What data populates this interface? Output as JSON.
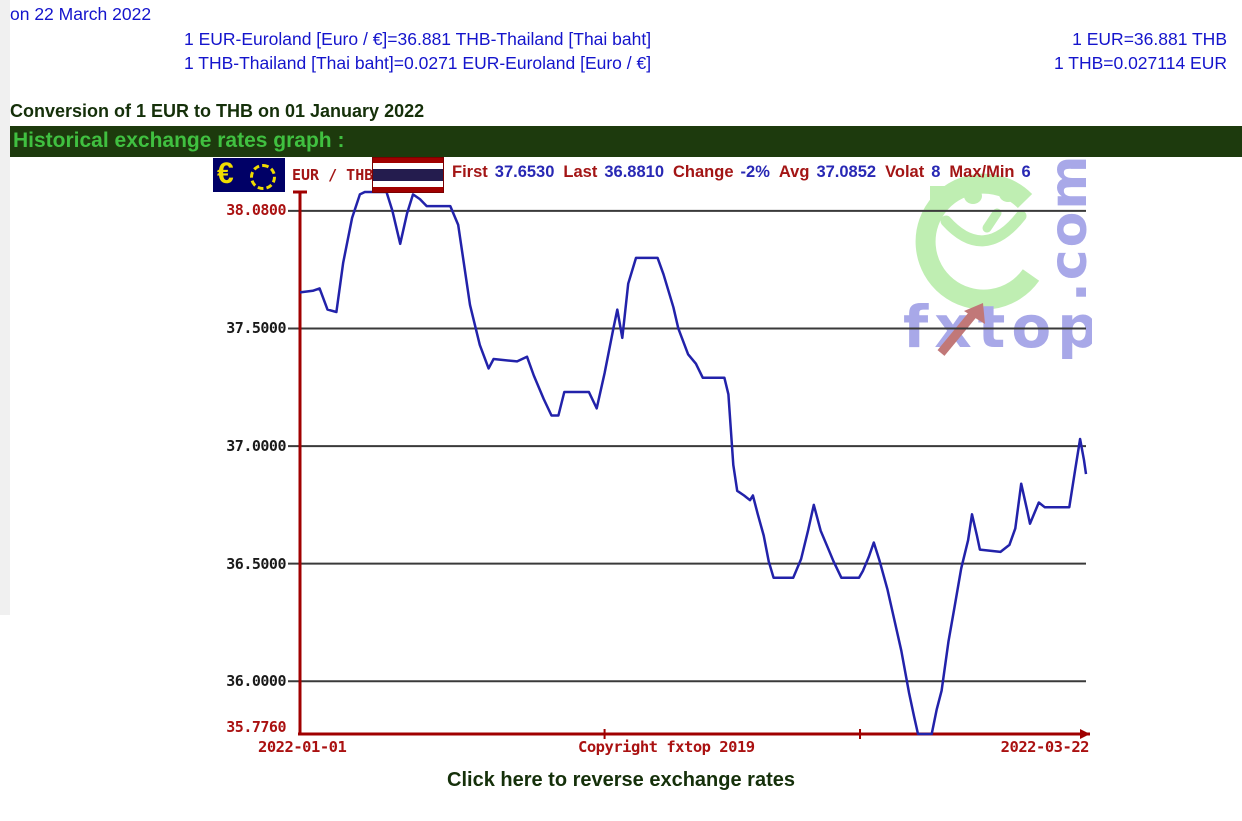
{
  "header": {
    "date_line": "on 22 March 2022",
    "rate_full_eur_to_thb": "1 EUR-Euroland [Euro / €]=36.881 THB-Thailand [Thai baht]",
    "rate_full_thb_to_eur": "1 THB-Thailand [Thai baht]=0.0271 EUR-Euroland [Euro / €]",
    "rate_short_eur_to_thb": "1 EUR=36.881 THB",
    "rate_short_thb_to_eur": "1 THB=0.027114 EUR"
  },
  "conversion_heading": "Conversion of 1 EUR to THB on 01 January 2022",
  "section": {
    "title": "Historical exchange rates graph :"
  },
  "chart_header": {
    "eur_flag_symbol": "€",
    "pair_label": "EUR / THB",
    "stats": [
      {
        "label": "First",
        "value": "37.6530"
      },
      {
        "label": "Last",
        "value": "36.8810"
      },
      {
        "label": "Change",
        "value": "-2%"
      },
      {
        "label": "Avg",
        "value": "37.0852"
      },
      {
        "label": "Volat",
        "value": "8"
      },
      {
        "label": "Max/Min",
        "value": "6"
      }
    ]
  },
  "chart_data": {
    "type": "line",
    "title": "EUR / THB historical exchange rate",
    "x_start_label": "2022-01-01",
    "x_end_label": "2022-03-22",
    "copyright": "Copyright fxtop 2019",
    "days_span": 80,
    "ylim": [
      35.776,
      38.08
    ],
    "first": 37.653,
    "last": 36.881,
    "change_pct": -2,
    "avg": 37.0852,
    "max": 38.08,
    "min": 35.776,
    "gridline_values": [
      38.0,
      37.5,
      37.0,
      36.5,
      36.0
    ],
    "x_tick_days": [
      31,
      57
    ],
    "y_axis_labels": [
      {
        "label": "38.0800",
        "value": 38.08,
        "emphasis": true
      },
      {
        "label": "37.5000",
        "value": 37.5,
        "emphasis": false
      },
      {
        "label": "37.0000",
        "value": 37.0,
        "emphasis": false
      },
      {
        "label": "36.5000",
        "value": 36.5,
        "emphasis": false
      },
      {
        "label": "36.0000",
        "value": 36.0,
        "emphasis": false
      },
      {
        "label": "35.7760",
        "value": 35.776,
        "emphasis": true
      }
    ],
    "points": [
      [
        0,
        37.653
      ],
      [
        1.3,
        37.66
      ],
      [
        2,
        37.67
      ],
      [
        2.8,
        37.58
      ],
      [
        3.7,
        37.57
      ],
      [
        4.4,
        37.78
      ],
      [
        5.3,
        37.97
      ],
      [
        6.1,
        38.07
      ],
      [
        6.6,
        38.08
      ],
      [
        8.8,
        38.08
      ],
      [
        9.4,
        38.0
      ],
      [
        10.2,
        37.86
      ],
      [
        10.9,
        37.99
      ],
      [
        11.5,
        38.07
      ],
      [
        12.2,
        38.05
      ],
      [
        12.9,
        38.02
      ],
      [
        15.3,
        38.02
      ],
      [
        16.1,
        37.94
      ],
      [
        17.3,
        37.6
      ],
      [
        18.3,
        37.43
      ],
      [
        19.2,
        37.33
      ],
      [
        19.7,
        37.37
      ],
      [
        22.1,
        37.36
      ],
      [
        23.1,
        37.38
      ],
      [
        23.8,
        37.3
      ],
      [
        24.8,
        37.2
      ],
      [
        25.6,
        37.13
      ],
      [
        26.3,
        37.13
      ],
      [
        26.9,
        37.23
      ],
      [
        29.4,
        37.23
      ],
      [
        30.2,
        37.16
      ],
      [
        31,
        37.31
      ],
      [
        31.9,
        37.5
      ],
      [
        32.3,
        37.58
      ],
      [
        32.8,
        37.46
      ],
      [
        33.4,
        37.69
      ],
      [
        34.2,
        37.8
      ],
      [
        36.4,
        37.8
      ],
      [
        37,
        37.73
      ],
      [
        38,
        37.59
      ],
      [
        38.5,
        37.5
      ],
      [
        39.5,
        37.39
      ],
      [
        40.3,
        37.35
      ],
      [
        41,
        37.29
      ],
      [
        43.2,
        37.29
      ],
      [
        43.6,
        37.22
      ],
      [
        44.1,
        36.92
      ],
      [
        44.5,
        36.81
      ],
      [
        45.2,
        36.79
      ],
      [
        45.8,
        36.77
      ],
      [
        46.1,
        36.79
      ],
      [
        46.6,
        36.71
      ],
      [
        47.2,
        36.62
      ],
      [
        47.7,
        36.51
      ],
      [
        48.2,
        36.44
      ],
      [
        50.2,
        36.44
      ],
      [
        51,
        36.52
      ],
      [
        51.7,
        36.64
      ],
      [
        52.3,
        36.75
      ],
      [
        53,
        36.64
      ],
      [
        53.7,
        36.57
      ],
      [
        54.3,
        36.51
      ],
      [
        55.1,
        36.44
      ],
      [
        56.9,
        36.44
      ],
      [
        57.3,
        36.47
      ],
      [
        57.9,
        36.53
      ],
      [
        58.4,
        36.59
      ],
      [
        59,
        36.51
      ],
      [
        59.8,
        36.39
      ],
      [
        60.5,
        36.26
      ],
      [
        61.2,
        36.13
      ],
      [
        62,
        35.95
      ],
      [
        62.5,
        35.85
      ],
      [
        62.9,
        35.776
      ],
      [
        64.3,
        35.776
      ],
      [
        64.8,
        35.88
      ],
      [
        65.3,
        35.96
      ],
      [
        66,
        36.17
      ],
      [
        66.6,
        36.31
      ],
      [
        67.3,
        36.48
      ],
      [
        68,
        36.6
      ],
      [
        68.4,
        36.71
      ],
      [
        68.9,
        36.62
      ],
      [
        69.2,
        36.56
      ],
      [
        71.3,
        36.55
      ],
      [
        72.2,
        36.58
      ],
      [
        72.8,
        36.65
      ],
      [
        73.4,
        36.84
      ],
      [
        74,
        36.73
      ],
      [
        74.3,
        36.67
      ],
      [
        74.8,
        36.72
      ],
      [
        75.2,
        36.76
      ],
      [
        75.8,
        36.74
      ],
      [
        78.3,
        36.74
      ],
      [
        78.9,
        36.9
      ],
      [
        79.4,
        37.03
      ],
      [
        79.8,
        36.94
      ],
      [
        80,
        36.881
      ]
    ]
  },
  "watermark": {
    "brand": "fxtop",
    "suffix": ".com"
  },
  "footer": {
    "reverse_link": "Click here to reverse exchange rates"
  },
  "colors": {
    "line_blue": "#2222aa",
    "axis_red": "#a00000",
    "grid_gray": "#3a3a3a",
    "label_red": "#aa1111",
    "stat_label_red": "#a31515",
    "stat_value_blue": "#2828b4",
    "top_text_blue": "#1414cc",
    "section_bg_green": "#1d3a0d",
    "section_text_green": "#40c040",
    "watermark_green": "#bfeeb2",
    "watermark_purple": "#a8a8e8",
    "watermark_arrow": "#c17878",
    "thai_red": "#a00000",
    "thai_navy": "#241c4e",
    "eur_navy": "#000066",
    "eur_yellow": "#f0dc00"
  }
}
